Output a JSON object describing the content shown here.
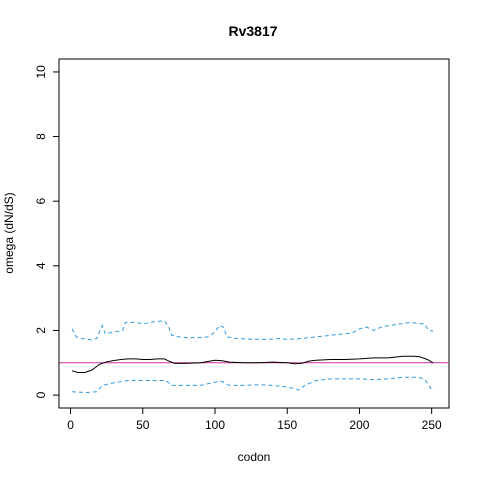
{
  "chart_data": {
    "type": "line",
    "title": "Rv3817",
    "xlabel": "codon",
    "ylabel": "omega (dN/dS)",
    "xlim": [
      -8,
      262
    ],
    "ylim": [
      -0.4,
      10.4
    ],
    "x_ticks": [
      0,
      50,
      100,
      150,
      200,
      250
    ],
    "y_ticks": [
      0,
      2,
      4,
      6,
      8,
      10
    ],
    "grid": false,
    "reference_line": {
      "y": 1,
      "color": "#cc3399"
    },
    "series": [
      {
        "role": "estimate",
        "color": "#000000",
        "dash": "solid",
        "points": [
          [
            1,
            0.75
          ],
          [
            5,
            0.7
          ],
          [
            10,
            0.7
          ],
          [
            15,
            0.78
          ],
          [
            20,
            0.95
          ],
          [
            25,
            1.03
          ],
          [
            30,
            1.07
          ],
          [
            35,
            1.1
          ],
          [
            40,
            1.12
          ],
          [
            45,
            1.12
          ],
          [
            50,
            1.1
          ],
          [
            55,
            1.1
          ],
          [
            60,
            1.12
          ],
          [
            65,
            1.12
          ],
          [
            68,
            1.05
          ],
          [
            72,
            0.98
          ],
          [
            80,
            0.98
          ],
          [
            90,
            1.0
          ],
          [
            100,
            1.08
          ],
          [
            105,
            1.06
          ],
          [
            110,
            1.02
          ],
          [
            120,
            1.0
          ],
          [
            130,
            1.0
          ],
          [
            140,
            1.02
          ],
          [
            150,
            1.0
          ],
          [
            155,
            0.97
          ],
          [
            160,
            0.98
          ],
          [
            165,
            1.05
          ],
          [
            170,
            1.08
          ],
          [
            180,
            1.1
          ],
          [
            190,
            1.1
          ],
          [
            200,
            1.12
          ],
          [
            210,
            1.15
          ],
          [
            220,
            1.15
          ],
          [
            230,
            1.2
          ],
          [
            238,
            1.2
          ],
          [
            242,
            1.18
          ],
          [
            247,
            1.1
          ],
          [
            251,
            1.0
          ]
        ]
      },
      {
        "role": "upper-bound",
        "color": "#3399dd",
        "dash": "dashed",
        "points": [
          [
            1,
            2.05
          ],
          [
            4,
            1.8
          ],
          [
            8,
            1.75
          ],
          [
            15,
            1.7
          ],
          [
            18,
            1.75
          ],
          [
            22,
            2.15
          ],
          [
            24,
            1.9
          ],
          [
            30,
            1.95
          ],
          [
            36,
            2.0
          ],
          [
            38,
            2.25
          ],
          [
            45,
            2.25
          ],
          [
            50,
            2.2
          ],
          [
            55,
            2.25
          ],
          [
            60,
            2.28
          ],
          [
            65,
            2.3
          ],
          [
            68,
            2.1
          ],
          [
            70,
            1.85
          ],
          [
            75,
            1.8
          ],
          [
            80,
            1.78
          ],
          [
            90,
            1.78
          ],
          [
            95,
            1.8
          ],
          [
            100,
            1.95
          ],
          [
            103,
            2.15
          ],
          [
            106,
            2.1
          ],
          [
            108,
            1.8
          ],
          [
            115,
            1.75
          ],
          [
            125,
            1.73
          ],
          [
            135,
            1.72
          ],
          [
            145,
            1.75
          ],
          [
            150,
            1.72
          ],
          [
            160,
            1.75
          ],
          [
            170,
            1.8
          ],
          [
            180,
            1.85
          ],
          [
            190,
            1.9
          ],
          [
            195,
            1.92
          ],
          [
            200,
            2.05
          ],
          [
            205,
            2.1
          ],
          [
            210,
            2.0
          ],
          [
            215,
            2.1
          ],
          [
            220,
            2.15
          ],
          [
            228,
            2.2
          ],
          [
            235,
            2.25
          ],
          [
            245,
            2.2
          ],
          [
            248,
            2.0
          ],
          [
            251,
            1.98
          ]
        ]
      },
      {
        "role": "lower-bound",
        "color": "#3399dd",
        "dash": "dashed",
        "points": [
          [
            1,
            0.1
          ],
          [
            10,
            0.08
          ],
          [
            18,
            0.1
          ],
          [
            22,
            0.3
          ],
          [
            30,
            0.38
          ],
          [
            40,
            0.45
          ],
          [
            50,
            0.45
          ],
          [
            60,
            0.45
          ],
          [
            66,
            0.45
          ],
          [
            70,
            0.3
          ],
          [
            80,
            0.3
          ],
          [
            90,
            0.3
          ],
          [
            100,
            0.4
          ],
          [
            105,
            0.42
          ],
          [
            110,
            0.3
          ],
          [
            120,
            0.3
          ],
          [
            130,
            0.32
          ],
          [
            140,
            0.3
          ],
          [
            150,
            0.25
          ],
          [
            155,
            0.2
          ],
          [
            158,
            0.15
          ],
          [
            162,
            0.3
          ],
          [
            170,
            0.45
          ],
          [
            180,
            0.5
          ],
          [
            190,
            0.5
          ],
          [
            200,
            0.5
          ],
          [
            210,
            0.48
          ],
          [
            220,
            0.5
          ],
          [
            230,
            0.55
          ],
          [
            240,
            0.55
          ],
          [
            245,
            0.5
          ],
          [
            248,
            0.3
          ],
          [
            251,
            0.1
          ]
        ]
      }
    ]
  }
}
